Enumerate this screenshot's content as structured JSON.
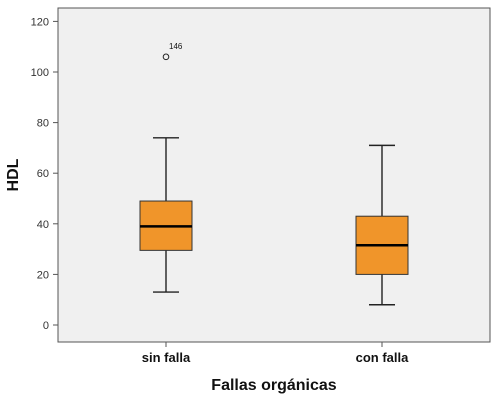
{
  "chart_data": {
    "type": "boxplot",
    "xlabel": "Fallas orgánicas",
    "ylabel": "HDL",
    "ylim": [
      -6,
      125
    ],
    "yticks": [
      0,
      20,
      40,
      60,
      80,
      100,
      120
    ],
    "grid": false,
    "plot_background": "#f0f0f0",
    "box_color": "#f0952a",
    "categories": [
      "sin falla",
      "con falla"
    ],
    "boxes": [
      {
        "category": "sin falla",
        "min": 13,
        "q1": 29.5,
        "median": 39,
        "q3": 49,
        "max": 74,
        "outliers": [
          {
            "value": 106,
            "label": "146"
          }
        ]
      },
      {
        "category": "con falla",
        "min": 8,
        "q1": 20,
        "median": 31.5,
        "q3": 43,
        "max": 71,
        "outliers": []
      }
    ]
  }
}
